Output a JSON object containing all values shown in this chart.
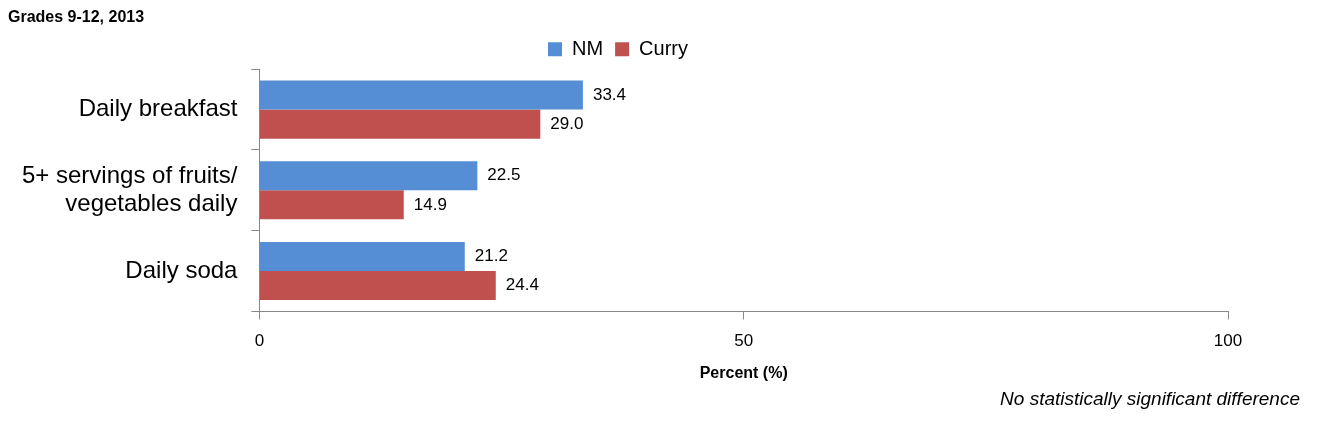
{
  "chart_data": {
    "type": "bar",
    "orientation": "horizontal",
    "title": "Grades 9-12, 2013",
    "categories": [
      "Daily breakfast",
      "5+ servings of fruits/ vegetables daily",
      "Daily soda"
    ],
    "series": [
      {
        "name": "NM",
        "color": "#558ed5",
        "values": [
          33.4,
          22.5,
          21.2
        ],
        "value_labels": [
          "33.4",
          "22.5",
          "21.2"
        ]
      },
      {
        "name": "Curry",
        "color": "#c0504d",
        "values": [
          29.0,
          14.9,
          24.4
        ],
        "value_labels": [
          "29.0",
          "14.9",
          "24.4"
        ]
      }
    ],
    "xlim": [
      0,
      100
    ],
    "xticks": [
      0,
      50,
      100
    ],
    "xlabel": "Percent (%)",
    "grid": false,
    "legend": "top",
    "annotations": [
      "No statistically significant difference"
    ]
  }
}
